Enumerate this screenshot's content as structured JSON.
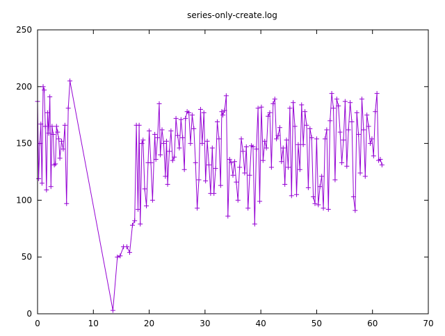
{
  "chart_data": {
    "type": "line",
    "title": "series-only-create.log",
    "xlabel": "",
    "ylabel": "",
    "xlim": [
      0,
      70
    ],
    "ylim": [
      0,
      250
    ],
    "xticks": [
      0,
      10,
      20,
      30,
      40,
      50,
      60,
      70
    ],
    "yticks": [
      0,
      50,
      100,
      150,
      200,
      250
    ],
    "xtick_labels": [
      "0",
      "10",
      "20",
      "30",
      "40",
      "50",
      "60",
      "70"
    ],
    "ytick_labels": [
      "0",
      "50",
      "100",
      "150",
      "200",
      "250"
    ],
    "grid": false,
    "legend": false,
    "marker": "plus",
    "series_color": "#9400d3",
    "series": [
      {
        "points": [
          [
            0.0,
            187
          ],
          [
            0.2,
            119
          ],
          [
            0.4,
            150
          ],
          [
            0.6,
            167
          ],
          [
            0.8,
            115
          ],
          [
            1.0,
            200
          ],
          [
            1.2,
            197
          ],
          [
            1.4,
            165
          ],
          [
            1.6,
            109
          ],
          [
            1.8,
            177
          ],
          [
            2.0,
            159
          ],
          [
            2.2,
            191
          ],
          [
            2.4,
            112
          ],
          [
            2.6,
            165
          ],
          [
            2.8,
            158
          ],
          [
            3.0,
            131
          ],
          [
            3.2,
            132
          ],
          [
            3.4,
            165
          ],
          [
            3.6,
            160
          ],
          [
            3.8,
            154
          ],
          [
            4.0,
            137
          ],
          [
            4.3,
            152
          ],
          [
            4.6,
            145
          ],
          [
            4.9,
            166
          ],
          [
            5.2,
            97
          ],
          [
            5.5,
            181
          ],
          [
            5.8,
            205
          ],
          [
            13.5,
            3
          ],
          [
            14.3,
            50
          ],
          [
            14.8,
            51
          ],
          [
            15.4,
            59
          ],
          [
            16.0,
            59
          ],
          [
            16.5,
            54
          ],
          [
            17.0,
            78
          ],
          [
            17.4,
            82
          ],
          [
            17.7,
            166
          ],
          [
            18.0,
            92
          ],
          [
            18.2,
            166
          ],
          [
            18.4,
            79
          ],
          [
            18.7,
            150
          ],
          [
            18.9,
            153
          ],
          [
            19.2,
            110
          ],
          [
            19.5,
            95
          ],
          [
            19.8,
            133
          ],
          [
            20.0,
            161
          ],
          [
            20.3,
            133
          ],
          [
            20.6,
            100
          ],
          [
            21.0,
            158
          ],
          [
            21.2,
            136
          ],
          [
            21.5,
            155
          ],
          [
            21.8,
            185
          ],
          [
            22.0,
            140
          ],
          [
            22.3,
            162
          ],
          [
            22.6,
            150
          ],
          [
            22.9,
            121
          ],
          [
            23.1,
            152
          ],
          [
            23.3,
            114
          ],
          [
            23.6,
            143
          ],
          [
            23.9,
            161
          ],
          [
            24.2,
            135
          ],
          [
            24.5,
            138
          ],
          [
            24.8,
            172
          ],
          [
            25.1,
            157
          ],
          [
            25.4,
            146
          ],
          [
            25.7,
            171
          ],
          [
            26.0,
            155
          ],
          [
            26.3,
            127
          ],
          [
            26.5,
            172
          ],
          [
            26.8,
            178
          ],
          [
            27.1,
            177
          ],
          [
            27.4,
            150
          ],
          [
            27.7,
            175
          ],
          [
            28.0,
            163
          ],
          [
            28.3,
            133
          ],
          [
            28.6,
            93
          ],
          [
            28.9,
            118
          ],
          [
            29.2,
            180
          ],
          [
            29.5,
            150
          ],
          [
            29.8,
            177
          ],
          [
            30.1,
            117
          ],
          [
            30.4,
            152
          ],
          [
            30.7,
            131
          ],
          [
            31.0,
            106
          ],
          [
            31.3,
            146
          ],
          [
            31.6,
            106
          ],
          [
            31.9,
            128
          ],
          [
            32.2,
            169
          ],
          [
            32.5,
            154
          ],
          [
            32.8,
            113
          ],
          [
            33.0,
            178
          ],
          [
            33.2,
            175
          ],
          [
            33.5,
            179
          ],
          [
            33.8,
            192
          ],
          [
            34.1,
            86
          ],
          [
            34.4,
            136
          ],
          [
            34.7,
            133
          ],
          [
            35.0,
            122
          ],
          [
            35.3,
            134
          ],
          [
            35.6,
            116
          ],
          [
            35.9,
            100
          ],
          [
            36.2,
            129
          ],
          [
            36.5,
            154
          ],
          [
            36.8,
            143
          ],
          [
            37.1,
            124
          ],
          [
            37.4,
            147
          ],
          [
            37.7,
            93
          ],
          [
            38.0,
            122
          ],
          [
            38.3,
            148
          ],
          [
            38.6,
            147
          ],
          [
            38.9,
            79
          ],
          [
            39.2,
            145
          ],
          [
            39.5,
            181
          ],
          [
            39.8,
            99
          ],
          [
            40.1,
            182
          ],
          [
            40.4,
            135
          ],
          [
            40.7,
            152
          ],
          [
            41.0,
            146
          ],
          [
            41.3,
            174
          ],
          [
            41.6,
            177
          ],
          [
            41.9,
            129
          ],
          [
            42.2,
            185
          ],
          [
            42.5,
            189
          ],
          [
            42.8,
            154
          ],
          [
            43.1,
            157
          ],
          [
            43.4,
            164
          ],
          [
            43.7,
            134
          ],
          [
            44.0,
            146
          ],
          [
            44.3,
            114
          ],
          [
            44.6,
            153
          ],
          [
            44.9,
            129
          ],
          [
            45.2,
            181
          ],
          [
            45.5,
            104
          ],
          [
            45.8,
            186
          ],
          [
            46.1,
            165
          ],
          [
            46.4,
            105
          ],
          [
            46.7,
            149
          ],
          [
            47.0,
            127
          ],
          [
            47.3,
            184
          ],
          [
            47.6,
            149
          ],
          [
            47.9,
            178
          ],
          [
            48.2,
            166
          ],
          [
            48.5,
            111
          ],
          [
            48.8,
            163
          ],
          [
            49.1,
            155
          ],
          [
            49.4,
            103
          ],
          [
            49.7,
            97
          ],
          [
            50.0,
            154
          ],
          [
            50.3,
            96
          ],
          [
            50.6,
            112
          ],
          [
            50.9,
            121
          ],
          [
            51.2,
            93
          ],
          [
            51.5,
            154
          ],
          [
            51.8,
            162
          ],
          [
            52.1,
            92
          ],
          [
            52.4,
            170
          ],
          [
            52.7,
            194
          ],
          [
            53.0,
            181
          ],
          [
            53.3,
            118
          ],
          [
            53.6,
            189
          ],
          [
            53.9,
            183
          ],
          [
            54.2,
            160
          ],
          [
            54.5,
            133
          ],
          [
            54.8,
            153
          ],
          [
            55.1,
            187
          ],
          [
            55.4,
            130
          ],
          [
            55.7,
            162
          ],
          [
            56.0,
            186
          ],
          [
            56.3,
            169
          ],
          [
            56.6,
            103
          ],
          [
            56.9,
            91
          ],
          [
            57.2,
            177
          ],
          [
            57.5,
            158
          ],
          [
            57.8,
            124
          ],
          [
            58.1,
            189
          ],
          [
            58.4,
            162
          ],
          [
            58.7,
            121
          ],
          [
            59.0,
            175
          ],
          [
            59.3,
            165
          ],
          [
            59.6,
            150
          ],
          [
            59.9,
            154
          ],
          [
            60.2,
            139
          ],
          [
            60.5,
            178
          ],
          [
            60.8,
            194
          ],
          [
            61.1,
            135
          ],
          [
            61.4,
            136
          ],
          [
            61.7,
            131
          ]
        ]
      }
    ]
  }
}
